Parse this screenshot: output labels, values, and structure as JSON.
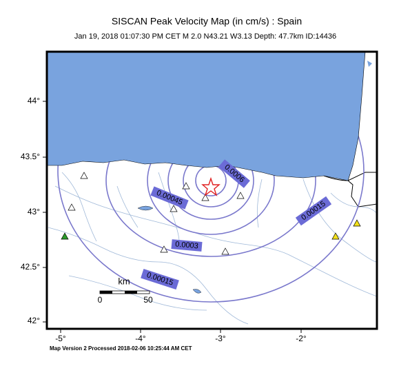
{
  "title": "SISCAN Peak Velocity Map (in cm/s) : Spain",
  "subtitle": "Jan 19, 2018 01:07:30 PM CET   M 2.0   N43.21 W3.13   Depth: 47.7km   ID:14436",
  "lat_labels": [
    "44°",
    "43.5°",
    "43°",
    "42.5°",
    "42°"
  ],
  "lon_labels": [
    "-5°",
    "-4°",
    "-3°",
    "-2°"
  ],
  "contour_labels": [
    "0.0006",
    "0.00045",
    "0.0003",
    "0.00015",
    "0.00015"
  ],
  "scale": {
    "title": "km",
    "labels": [
      "0",
      "50"
    ]
  },
  "footer": "Map Version 2 Processed 2018-02-06 10:25:44 AM CET"
}
